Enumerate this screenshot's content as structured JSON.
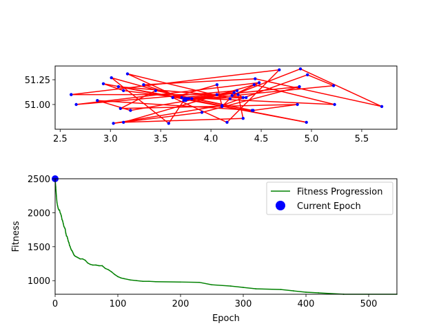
{
  "chart_data": [
    {
      "type": "line",
      "title": "",
      "xlabel": "",
      "ylabel": "",
      "xlim": [
        2.45,
        5.85
      ],
      "ylim": [
        50.85,
        1.42
      ],
      "xticks": [
        2.5,
        3.0,
        3.5,
        4.0,
        4.5,
        5.0,
        5.5
      ],
      "xtick_labels": [
        "2.5",
        "3.0",
        "3.5",
        "4.0",
        "4.5",
        "5.0",
        "5.5"
      ],
      "yticks": [
        51.0,
        51.25
      ],
      "ytick_labels": [
        "51.00",
        "51.25"
      ],
      "grid": false,
      "series": [
        {
          "route_color": "#ff0000",
          "point_color": "#0000ff",
          "x": [
            2.61,
            4.68,
            4.16,
            3.62,
            4.06,
            4.11,
            4.19,
            3.17,
            3.75,
            4.26,
            2.66,
            4.48,
            4.21,
            4.89,
            5.7,
            4.44,
            3.33,
            3.74,
            4.88,
            3.91,
            3.03,
            4.11,
            4.96,
            5.22,
            3.73,
            3.58,
            3.01,
            3.76,
            3.13,
            2.93,
            3.74,
            4.95,
            3.08,
            4.35,
            3.81,
            4.41,
            3.45,
            3.1,
            4.86,
            4.42,
            2.87,
            3.2,
            4.23,
            3.71,
            5.23,
            4.43,
            3.13,
            4.32,
            4.27,
            4.32,
            3.78,
            3.75,
            4.06,
            2.61
          ],
          "y": [
            51.1,
            51.35,
            50.82,
            51.07,
            51.2,
            50.98,
            51.06,
            51.31,
            51.04,
            51.14,
            51.0,
            51.22,
            51.09,
            51.36,
            50.98,
            51.26,
            51.2,
            51.06,
            51.18,
            50.92,
            50.81,
            50.99,
            51.3,
            51.19,
            51.04,
            50.81,
            51.27,
            51.06,
            51.14,
            51.21,
            51.06,
            50.82,
            51.18,
            51.07,
            51.06,
            50.94,
            51.14,
            50.96,
            51.0,
            50.94,
            51.04,
            50.94,
            51.12,
            51.07,
            51.0,
            51.2,
            50.82,
            50.86,
            51.1,
            51.07,
            51.06,
            51.05,
            51.1,
            51.1
          ]
        }
      ]
    },
    {
      "type": "line",
      "title": "",
      "xlabel": "Epoch",
      "ylabel": "Fitness",
      "xlim": [
        0,
        545
      ],
      "ylim": [
        800,
        2500
      ],
      "xticks": [
        0,
        100,
        200,
        300,
        400,
        500
      ],
      "xtick_labels": [
        "0",
        "100",
        "200",
        "300",
        "400",
        "500"
      ],
      "yticks": [
        1000,
        1500,
        2000,
        2500
      ],
      "ytick_labels": [
        "1000",
        "1500",
        "2000",
        "2500"
      ],
      "grid": false,
      "legend_position": "upper right",
      "series": [
        {
          "name": "Fitness Progression",
          "color": "#008000",
          "x": [
            0,
            1,
            2,
            3,
            4,
            5,
            6,
            7,
            8,
            9,
            10,
            11,
            12,
            13,
            14,
            15,
            16,
            17,
            18,
            19,
            20,
            21,
            22,
            23,
            24,
            25,
            26,
            27,
            28,
            29,
            30,
            31,
            32,
            34,
            36,
            38,
            40,
            44,
            48,
            52,
            56,
            60,
            65,
            70,
            75,
            80,
            85,
            90,
            95,
            100,
            105,
            110,
            120,
            130,
            140,
            150,
            160,
            200,
            230,
            250,
            280,
            300,
            320,
            360,
            380,
            400,
            420,
            460,
            545
          ],
          "y": [
            2500,
            2380,
            2250,
            2150,
            2100,
            2060,
            2040,
            2040,
            2000,
            1980,
            1950,
            1900,
            1880,
            1840,
            1800,
            1780,
            1760,
            1700,
            1660,
            1650,
            1620,
            1580,
            1560,
            1520,
            1500,
            1470,
            1450,
            1440,
            1420,
            1400,
            1380,
            1370,
            1360,
            1350,
            1340,
            1330,
            1320,
            1320,
            1300,
            1260,
            1240,
            1230,
            1230,
            1220,
            1220,
            1180,
            1160,
            1130,
            1090,
            1060,
            1040,
            1030,
            1010,
            1000,
            990,
            990,
            985,
            980,
            975,
            940,
            920,
            900,
            880,
            870,
            850,
            830,
            820,
            800,
            800
          ]
        }
      ],
      "current_epoch": {
        "name": "Current Epoch",
        "color": "#0000ff",
        "x": 0,
        "y": 2500
      }
    }
  ]
}
